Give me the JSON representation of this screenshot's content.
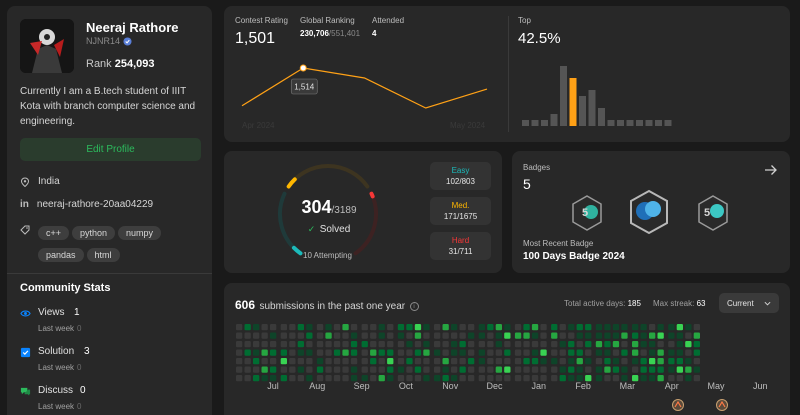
{
  "profile": {
    "name": "Neeraj Rathore",
    "username": "NJNR14",
    "rank_label": "Rank",
    "rank_value": "254,093",
    "bio": "Currently I am a B.tech student of IIIT Kota with branch computer science and engineering.",
    "edit_button": "Edit Profile",
    "location": "India",
    "linkedin": "neeraj-rathore-20aa04229",
    "skills": [
      "c++",
      "python",
      "numpy",
      "pandas",
      "html"
    ]
  },
  "community": {
    "title": "Community Stats",
    "items": [
      {
        "label": "Views",
        "value": "1",
        "sub": "Last week",
        "delta": "0",
        "icon": "eye-icon",
        "color": "#0a84ff"
      },
      {
        "label": "Solution",
        "value": "3",
        "sub": "Last week",
        "delta": "0",
        "icon": "solution-icon",
        "color": "#0a84ff"
      },
      {
        "label": "Discuss",
        "value": "0",
        "sub": "Last week",
        "delta": "0",
        "icon": "discuss-icon",
        "color": "#2cbb5d"
      }
    ]
  },
  "contest": {
    "rating_label": "Contest Rating",
    "rating_value": "1,501",
    "global_label": "Global Ranking",
    "global_value": "230,706",
    "global_total": "/551,401",
    "attended_label": "Attended",
    "attended_value": "4",
    "tooltip": "1,514",
    "x_start": "Apr 2024",
    "x_end": "May 2024",
    "top_label": "Top",
    "top_value": "42.5%",
    "line_points": [
      1480,
      1514,
      1505,
      1478,
      1495
    ],
    "histogram": [
      1,
      1,
      1,
      2,
      10,
      8,
      5,
      6,
      3,
      1,
      1,
      1,
      1,
      1,
      1,
      1
    ],
    "histogram_highlight": 5,
    "accent": "#ffa116"
  },
  "problems": {
    "solved": "304",
    "total": "/3189",
    "solved_label": "Solved",
    "attempting": "10 Attempting",
    "easy_label": "Easy",
    "easy_value": "102/803",
    "easy_color": "#1cbaba",
    "med_label": "Med.",
    "med_value": "171/1675",
    "med_color": "#ffb700",
    "hard_label": "Hard",
    "hard_value": "31/711",
    "hard_color": "#f63737"
  },
  "badges": {
    "title": "Badges",
    "count": "5",
    "recent_label": "Most Recent Badge",
    "recent_name": "100 Days Badge 2024"
  },
  "submissions": {
    "count": "606",
    "text": "submissions in the past one year",
    "active_label": "Total active days:",
    "active_value": "185",
    "streak_label": "Max streak:",
    "streak_value": "63",
    "dropdown": "Current",
    "months": [
      "Jul",
      "Aug",
      "Sep",
      "Oct",
      "Nov",
      "Dec",
      "Jan",
      "Feb",
      "Mar",
      "Apr",
      "May",
      "Jun"
    ]
  }
}
